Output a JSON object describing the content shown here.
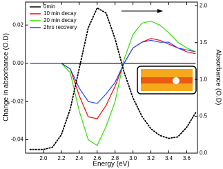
{
  "chart_data": {
    "type": "line",
    "x_label": "Energy (eV)",
    "y_label": "Change in absorbance (O.D)",
    "y2_label": "Absorbance (O.D)",
    "x": [
      1.85,
      1.9,
      2.0,
      2.1,
      2.2,
      2.3,
      2.4,
      2.5,
      2.6,
      2.7,
      2.8,
      2.9,
      3.0,
      3.1,
      3.2,
      3.3,
      3.4,
      3.5,
      3.6,
      3.7
    ],
    "series": [
      {
        "name": "0min",
        "color": "#000000",
        "values": [
          0,
          0,
          0,
          0,
          0,
          0,
          0,
          0,
          0,
          0,
          0,
          0,
          0,
          0,
          0,
          0,
          0,
          0,
          0,
          0
        ]
      },
      {
        "name": "10 min decay",
        "color": "#ff0000",
        "values": [
          0,
          0,
          0,
          0,
          0,
          -0.003,
          -0.017,
          -0.028,
          -0.029,
          -0.022,
          -0.012,
          0.0,
          0.008,
          0.011,
          0.013,
          0.012,
          0.01,
          0.008,
          0.006,
          0.005
        ]
      },
      {
        "name": "20 min decay",
        "color": "#33dd00",
        "values": [
          0,
          0,
          0,
          0,
          0,
          -0.005,
          -0.025,
          -0.04,
          -0.043,
          -0.033,
          -0.02,
          0.002,
          0.015,
          0.021,
          0.022,
          0.02,
          0.016,
          0.011,
          0.008,
          0.006
        ]
      },
      {
        "name": "2hrs recovery",
        "color": "#2244ff",
        "values": [
          0,
          0,
          0,
          0,
          0,
          -0.003,
          -0.013,
          -0.02,
          -0.021,
          -0.016,
          -0.01,
          0.0,
          0.008,
          0.011,
          0.012,
          0.011,
          0.011,
          0.008,
          0.007,
          0.006
        ]
      },
      {
        "color": "#000000",
        "axis": "y2",
        "dashed": true,
        "values": [
          0.05,
          0.05,
          0.05,
          0.08,
          0.25,
          0.6,
          1.15,
          1.7,
          1.97,
          1.9,
          1.55,
          1.1,
          0.75,
          0.5,
          0.33,
          0.24,
          0.2,
          0.22,
          0.35,
          0.55
        ]
      }
    ],
    "xlim": [
      1.8,
      3.72
    ],
    "xticks": [
      {
        "value": 2.0,
        "label": "2.0"
      },
      2.2,
      2.4,
      2.6,
      2.8,
      {
        "value": 3.0,
        "label": "3.0"
      },
      3.2,
      3.4,
      3.6
    ],
    "ylim": [
      -0.047,
      0.032
    ],
    "yticks": [
      -0.04,
      -0.02,
      {
        "value": 0,
        "label": "0.00"
      },
      0.02
    ],
    "y2lim": [
      0,
      2.05
    ],
    "y2ticks": [
      {
        "value": 0,
        "label": "0.0"
      },
      0.5,
      {
        "value": 1,
        "label": "1.0"
      },
      1.5,
      {
        "value": 2,
        "label": "2.0"
      }
    ],
    "legend": "upper-left"
  }
}
